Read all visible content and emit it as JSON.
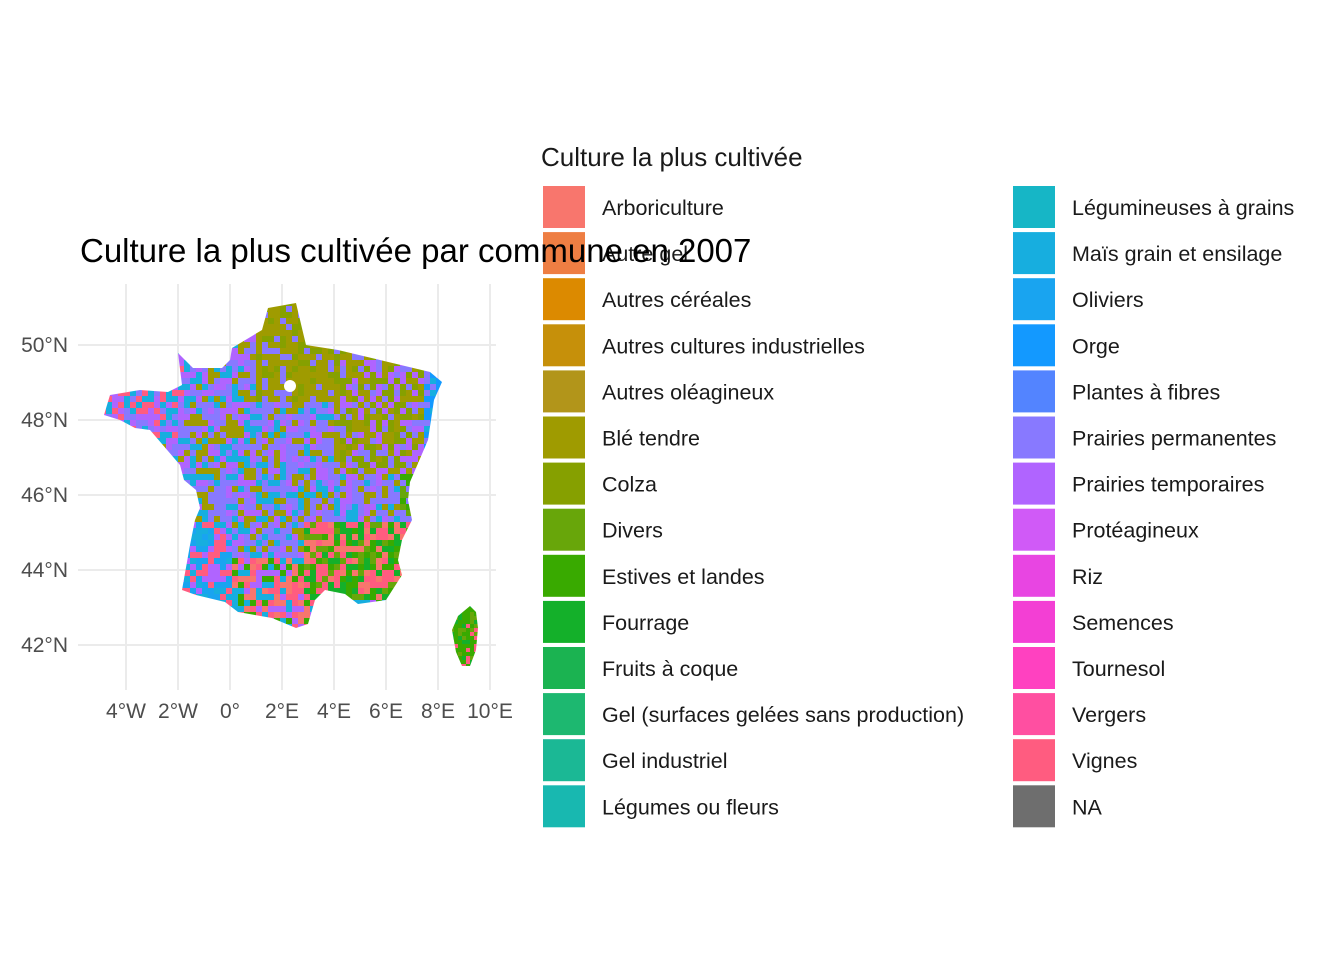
{
  "map": {
    "title": "Culture la plus cultivée par commune en 2007",
    "lon_ticks": [
      "4°W",
      "2°W",
      "0°",
      "2°E",
      "4°E",
      "6°E",
      "8°E",
      "10°E"
    ],
    "lat_ticks": [
      "50°N",
      "48°N",
      "46°N",
      "44°N",
      "42°N"
    ],
    "grid": true,
    "region": "France"
  },
  "legend": {
    "title": "Culture la plus cultivée",
    "items": [
      {
        "label": "Arboriculture",
        "color": "#F8766D"
      },
      {
        "label": "Autre gel",
        "color": "#EE7E43"
      },
      {
        "label": "Autres céréales",
        "color": "#DC8A00"
      },
      {
        "label": "Autres cultures industrielles",
        "color": "#C6900A"
      },
      {
        "label": "Autres oléagineux",
        "color": "#B2951A"
      },
      {
        "label": "Blé tendre",
        "color": "#9F9B00"
      },
      {
        "label": "Colza",
        "color": "#86A000"
      },
      {
        "label": "Divers",
        "color": "#68A60A"
      },
      {
        "label": "Estives et landes",
        "color": "#39AA00"
      },
      {
        "label": "Fourrage",
        "color": "#14B02A"
      },
      {
        "label": "Fruits à coque",
        "color": "#1BB351"
      },
      {
        "label": "Gel (surfaces gelées sans production)",
        "color": "#1DB870"
      },
      {
        "label": "Gel industriel",
        "color": "#1BB895"
      },
      {
        "label": "Légumes ou fleurs",
        "color": "#18B8B0"
      },
      {
        "label": "Légumineuses à grains",
        "color": "#16B6C6"
      },
      {
        "label": "Maïs grain et ensilage",
        "color": "#17AEDF"
      },
      {
        "label": "Oliviers",
        "color": "#19A4F0"
      },
      {
        "label": "Orge",
        "color": "#1399FF"
      },
      {
        "label": "Plantes à fibres",
        "color": "#5384FF"
      },
      {
        "label": "Prairies permanentes",
        "color": "#8879FF"
      },
      {
        "label": "Prairies temporaires",
        "color": "#B064FF"
      },
      {
        "label": "Protéagineux",
        "color": "#D05AF7"
      },
      {
        "label": "Riz",
        "color": "#E845E2"
      },
      {
        "label": "Semences",
        "color": "#F33FD4"
      },
      {
        "label": "Tournesol",
        "color": "#FF41C0"
      },
      {
        "label": "Vergers",
        "color": "#FF4FA1"
      },
      {
        "label": "Vignes",
        "color": "#FF5C80"
      },
      {
        "label": "NA",
        "color": "#6E6E6E"
      }
    ]
  }
}
